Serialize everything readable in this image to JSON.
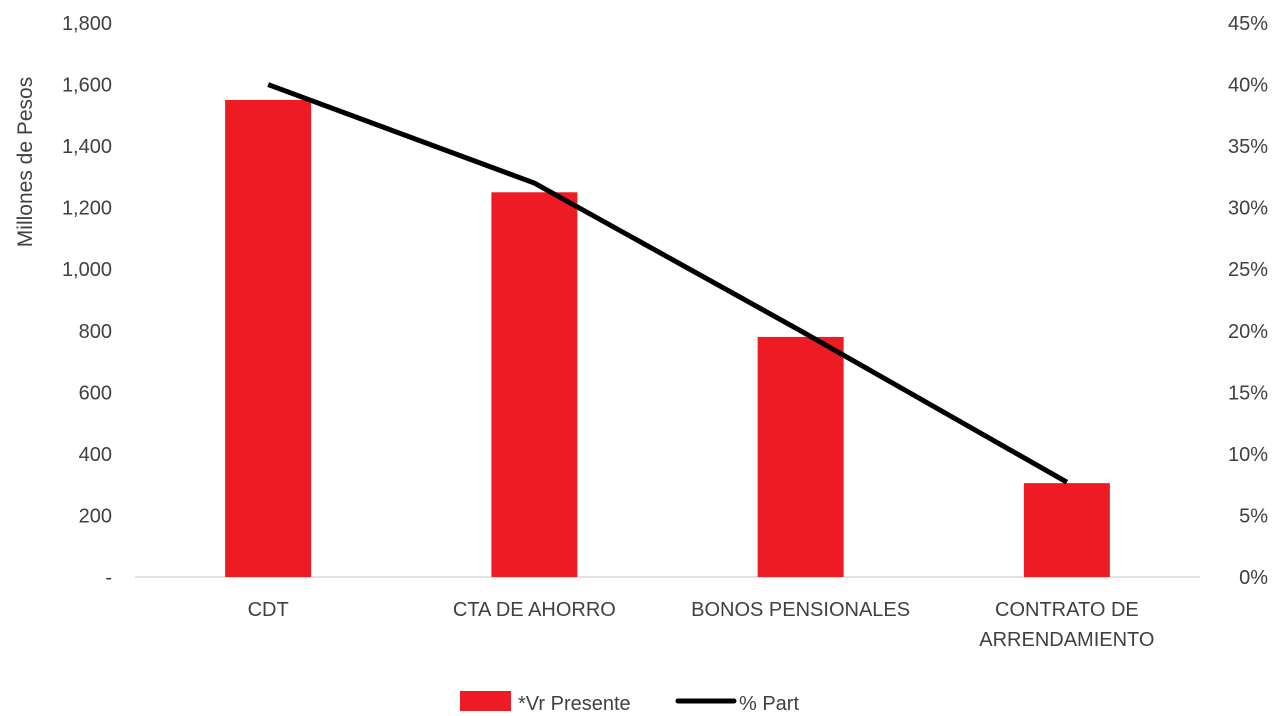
{
  "chart_data": {
    "type": "bar",
    "categories": [
      "CDT",
      "CTA DE AHORRO",
      "BONOS PENSIONALES",
      "CONTRATO DE ARRENDAMIENTO"
    ],
    "category_lines": [
      [
        "CDT"
      ],
      [
        "CTA DE AHORRO"
      ],
      [
        "BONOS PENSIONALES"
      ],
      [
        "CONTRATO DE",
        "ARRENDAMIENTO"
      ]
    ],
    "series": [
      {
        "name": "*Vr Presente",
        "type": "bar",
        "axis": "left",
        "color": "#ed1c24",
        "values": [
          1550,
          1250,
          780,
          305
        ]
      },
      {
        "name": "% Part",
        "type": "line",
        "axis": "right",
        "color": "#000000",
        "values": [
          0.4,
          0.32,
          0.2,
          0.077
        ]
      }
    ],
    "ylabel": "Millones de Pesos",
    "ylim": [
      0,
      1800
    ],
    "y_ticks": [
      0,
      200,
      400,
      600,
      800,
      1000,
      1200,
      1400,
      1600,
      1800
    ],
    "y_tick_labels": [
      "-",
      "200",
      "400",
      "600",
      "800",
      "1,000",
      "1,200",
      "1,400",
      "1,600",
      "1,800"
    ],
    "y2lim": [
      0,
      0.45
    ],
    "y2_ticks": [
      0,
      0.05,
      0.1,
      0.15,
      0.2,
      0.25,
      0.3,
      0.35,
      0.4,
      0.45
    ],
    "y2_tick_labels": [
      "0%",
      "5%",
      "10%",
      "15%",
      "20%",
      "25%",
      "30%",
      "35%",
      "40%",
      "45%"
    ],
    "grid": false,
    "legend_position": "bottom-center"
  }
}
